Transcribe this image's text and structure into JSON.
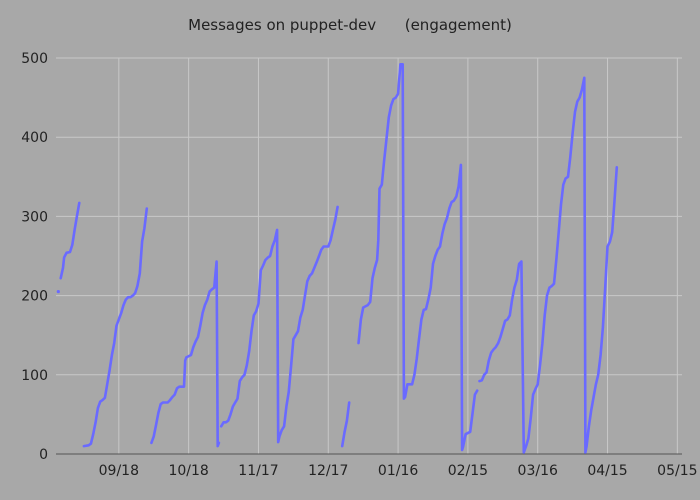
{
  "chart_data": {
    "type": "line",
    "title": "Messages on puppet-dev      (engagement)",
    "xlabel": "",
    "ylabel": "",
    "ylim": [
      0,
      500
    ],
    "y_ticks": [
      0,
      100,
      200,
      300,
      400,
      500
    ],
    "x_ticks": [
      "09/18",
      "10/18",
      "11/17",
      "12/17",
      "01/16",
      "02/15",
      "03/16",
      "04/15",
      "05/15"
    ],
    "x_tick_values": [
      58,
      88,
      118,
      148,
      178,
      208,
      238,
      268,
      298
    ],
    "xlim": [
      31,
      300
    ],
    "grid": true,
    "legend": "none",
    "color": "#6a6aff",
    "series": [
      {
        "segments": [
          [
            [
              32,
              205
            ]
          ],
          [
            [
              33,
              222
            ],
            [
              34,
              235
            ],
            [
              34.5,
              248
            ],
            [
              35.5,
              254
            ],
            [
              37,
              255
            ],
            [
              38,
              264
            ],
            [
              39,
              283
            ],
            [
              40,
              300
            ],
            [
              41,
              317
            ]
          ],
          [
            [
              43,
              10
            ],
            [
              45,
              11
            ],
            [
              46,
              13
            ],
            [
              47,
              25
            ],
            [
              48,
              40
            ],
            [
              49,
              58
            ],
            [
              50,
              66
            ],
            [
              51,
              68
            ],
            [
              52,
              71
            ],
            [
              53,
              88
            ],
            [
              54,
              105
            ],
            [
              55,
              125
            ],
            [
              56,
              140
            ],
            [
              57,
              162
            ],
            [
              58,
              170
            ],
            [
              59,
              178
            ],
            [
              60,
              188
            ],
            [
              61,
              195
            ],
            [
              62,
              198
            ],
            [
              63,
              198
            ],
            [
              64,
              200
            ],
            [
              65,
              203
            ],
            [
              66,
              212
            ],
            [
              67,
              228
            ],
            [
              68,
              268
            ],
            [
              69,
              285
            ],
            [
              70,
              310
            ]
          ],
          [
            [
              72,
              14
            ],
            [
              73,
              22
            ],
            [
              74,
              37
            ],
            [
              75,
              52
            ],
            [
              76,
              63
            ],
            [
              77,
              65
            ],
            [
              79,
              65
            ],
            [
              80,
              68
            ],
            [
              81,
              72
            ],
            [
              82,
              75
            ],
            [
              83,
              83
            ],
            [
              84,
              85
            ],
            [
              85,
              85
            ],
            [
              86,
              85
            ],
            [
              86.5,
              118
            ],
            [
              87,
              122
            ],
            [
              89,
              125
            ],
            [
              90,
              135
            ],
            [
              91,
              142
            ],
            [
              92,
              148
            ],
            [
              93,
              162
            ],
            [
              94,
              178
            ],
            [
              95,
              188
            ],
            [
              96,
              195
            ],
            [
              97,
              205
            ],
            [
              98,
              208
            ],
            [
              99,
              210
            ],
            [
              100,
              243
            ],
            [
              100.5,
              10
            ],
            [
              101,
              14
            ]
          ],
          [
            [
              102,
              35
            ],
            [
              103,
              40
            ],
            [
              104,
              40
            ],
            [
              105,
              42
            ],
            [
              106,
              50
            ],
            [
              107,
              60
            ],
            [
              108,
              65
            ],
            [
              109,
              70
            ],
            [
              110,
              92
            ],
            [
              111,
              97
            ],
            [
              112,
              100
            ],
            [
              113,
              112
            ],
            [
              114,
              130
            ],
            [
              115,
              155
            ],
            [
              116,
              175
            ],
            [
              117,
              180
            ],
            [
              118,
              190
            ],
            [
              119,
              232
            ],
            [
              120,
              238
            ],
            [
              121,
              245
            ],
            [
              122,
              248
            ],
            [
              123,
              250
            ],
            [
              124,
              262
            ],
            [
              125,
              270
            ],
            [
              126,
              283
            ],
            [
              126.5,
              15
            ],
            [
              127,
              22
            ],
            [
              128,
              30
            ],
            [
              129,
              35
            ],
            [
              130,
              60
            ],
            [
              131,
              78
            ],
            [
              132,
              110
            ],
            [
              133,
              145
            ],
            [
              134,
              150
            ],
            [
              135,
              155
            ],
            [
              136,
              172
            ],
            [
              137,
              182
            ],
            [
              138,
              200
            ],
            [
              139,
              218
            ],
            [
              140,
              225
            ],
            [
              141,
              228
            ],
            [
              142,
              235
            ],
            [
              143,
              242
            ],
            [
              144,
              250
            ],
            [
              145,
              258
            ],
            [
              146,
              262
            ],
            [
              147,
              262
            ],
            [
              148,
              262
            ],
            [
              149,
              270
            ],
            [
              150,
              283
            ],
            [
              151,
              296
            ],
            [
              152,
              312
            ]
          ],
          [
            [
              154,
              10
            ],
            [
              155,
              28
            ],
            [
              156,
              42
            ],
            [
              157,
              65
            ]
          ],
          [
            [
              161,
              140
            ],
            [
              162,
              170
            ],
            [
              163,
              185
            ],
            [
              165,
              188
            ],
            [
              166,
              192
            ],
            [
              167,
              222
            ],
            [
              168,
              235
            ],
            [
              169,
              245
            ],
            [
              169.5,
              270
            ],
            [
              170,
              335
            ],
            [
              171,
              340
            ],
            [
              172,
              370
            ],
            [
              173,
              398
            ],
            [
              174,
              425
            ],
            [
              175,
              440
            ],
            [
              176,
              448
            ],
            [
              177,
              450
            ],
            [
              178,
              455
            ],
            [
              179,
              492
            ],
            [
              180,
              492
            ],
            [
              180.5,
              70
            ],
            [
              181,
              72
            ],
            [
              182,
              88
            ],
            [
              184,
              88
            ],
            [
              185,
              100
            ],
            [
              186,
              120
            ],
            [
              187,
              145
            ],
            [
              188,
              170
            ],
            [
              189,
              182
            ],
            [
              190,
              183
            ],
            [
              191,
              195
            ],
            [
              192,
              210
            ],
            [
              193,
              240
            ],
            [
              194,
              250
            ],
            [
              195,
              258
            ],
            [
              196,
              262
            ],
            [
              197,
              278
            ],
            [
              198,
              290
            ],
            [
              199,
              298
            ],
            [
              200,
              310
            ],
            [
              201,
              318
            ],
            [
              202,
              320
            ],
            [
              203,
              325
            ],
            [
              204,
              338
            ],
            [
              205,
              365
            ],
            [
              205.5,
              5
            ],
            [
              206,
              10
            ],
            [
              207,
              25
            ],
            [
              209,
              28
            ],
            [
              210,
              52
            ],
            [
              211,
              75
            ],
            [
              212,
              80
            ]
          ],
          [
            [
              213,
              92
            ],
            [
              214,
              93
            ],
            [
              215,
              100
            ],
            [
              216,
              103
            ],
            [
              217,
              118
            ],
            [
              218,
              128
            ],
            [
              219,
              132
            ],
            [
              220,
              135
            ],
            [
              221,
              140
            ],
            [
              222,
              148
            ],
            [
              223,
              158
            ],
            [
              224,
              168
            ],
            [
              225,
              170
            ],
            [
              226,
              175
            ],
            [
              227,
              195
            ],
            [
              228,
              210
            ],
            [
              229,
              220
            ],
            [
              230,
              240
            ],
            [
              231,
              243
            ],
            [
              232,
              2
            ],
            [
              233,
              10
            ],
            [
              234,
              20
            ],
            [
              235,
              45
            ],
            [
              236,
              75
            ],
            [
              237,
              82
            ],
            [
              238,
              88
            ],
            [
              239,
              112
            ],
            [
              240,
              140
            ],
            [
              241,
              175
            ],
            [
              242,
              200
            ],
            [
              243,
              210
            ],
            [
              244,
              212
            ],
            [
              245,
              215
            ],
            [
              246,
              245
            ],
            [
              247,
              280
            ],
            [
              248,
              315
            ],
            [
              249,
              340
            ],
            [
              250,
              348
            ],
            [
              251,
              350
            ],
            [
              252,
              375
            ],
            [
              253,
              405
            ],
            [
              254,
              432
            ],
            [
              255,
              445
            ],
            [
              256,
              450
            ],
            [
              257,
              460
            ],
            [
              258,
              475
            ],
            [
              258.5,
              2
            ],
            [
              259,
              10
            ],
            [
              260,
              35
            ],
            [
              261,
              55
            ],
            [
              262,
              72
            ],
            [
              263,
              88
            ],
            [
              264,
              100
            ],
            [
              265,
              125
            ],
            [
              266,
              160
            ],
            [
              267,
              210
            ],
            [
              268,
              262
            ],
            [
              269,
              268
            ],
            [
              270,
              280
            ],
            [
              271,
              320
            ],
            [
              272,
              362
            ]
          ]
        ]
      }
    ]
  }
}
